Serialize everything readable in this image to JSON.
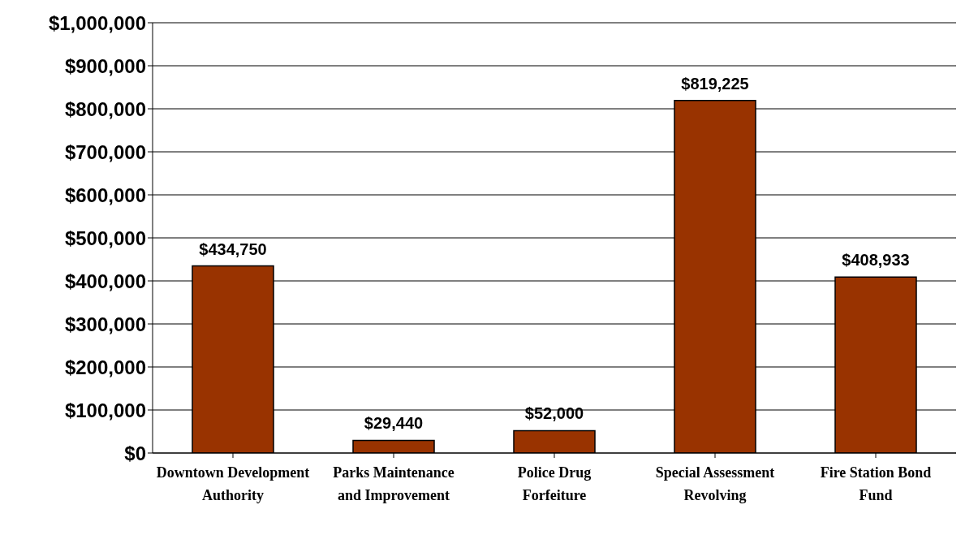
{
  "chart_data": {
    "type": "bar",
    "categories": [
      "Downtown Development Authority",
      "Parks Maintenance and Improvement",
      "Police Drug Forfeiture",
      "Special Assessment Revolving",
      "Fire Station Bond Fund"
    ],
    "values": [
      434750,
      29440,
      52000,
      819225,
      408933
    ],
    "value_labels": [
      "$434,750",
      "$29,440",
      "$52,000",
      "$819,225",
      "$408,933"
    ],
    "color": "#993300",
    "ylim": [
      0,
      1000000
    ],
    "yticks": [
      {
        "value": 0,
        "label": "$0"
      },
      {
        "value": 100000,
        "label": "$100,000"
      },
      {
        "value": 200000,
        "label": "$200,000"
      },
      {
        "value": 300000,
        "label": "$300,000"
      },
      {
        "value": 400000,
        "label": "$400,000"
      },
      {
        "value": 500000,
        "label": "$500,000"
      },
      {
        "value": 600000,
        "label": "$600,000"
      },
      {
        "value": 700000,
        "label": "$700,000"
      },
      {
        "value": 800000,
        "label": "$800,000"
      },
      {
        "value": 900000,
        "label": "$900,000"
      },
      {
        "value": 1000000,
        "label": "$1,000,000"
      }
    ],
    "grid": "y"
  }
}
